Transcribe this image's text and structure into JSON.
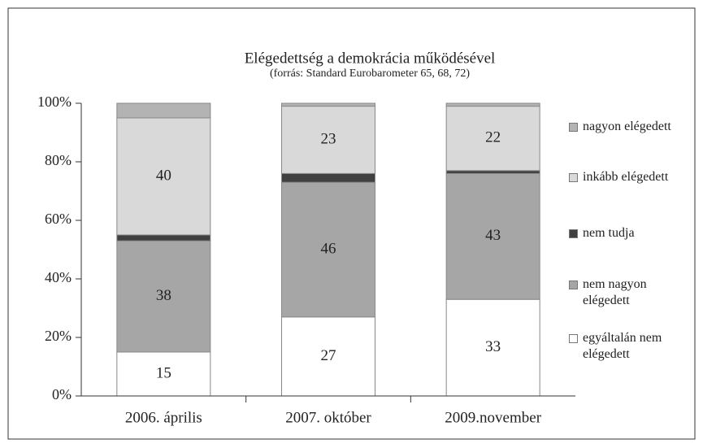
{
  "chart_data": {
    "type": "stacked_bar",
    "title": "Elégedettség a demokrácia működésével",
    "subtitle": "(forrás: Standard Eurobarometer 65, 68, 72)",
    "categories": [
      "2006. április",
      "2007. október",
      "2009.november"
    ],
    "series": [
      {
        "name": "egyáltalán nem elégedett",
        "color": "#ffffff",
        "values": [
          15,
          27,
          33
        ],
        "show_labels": true
      },
      {
        "name": "nem nagyon elégedett",
        "color": "#a6a6a6",
        "values": [
          38,
          46,
          43
        ],
        "show_labels": true
      },
      {
        "name": "nem tudja",
        "color": "#404040",
        "values": [
          2,
          3,
          1
        ],
        "show_labels": false
      },
      {
        "name": "inkább elégedett",
        "color": "#d9d9d9",
        "values": [
          40,
          23,
          22
        ],
        "show_labels": true
      },
      {
        "name": "nagyon elégedett",
        "color": "#b3b3b3",
        "values": [
          5,
          1,
          1
        ],
        "show_labels": false
      }
    ],
    "ylim": [
      0,
      100
    ],
    "yticks": [
      {
        "value": 0,
        "label": "0%"
      },
      {
        "value": 20,
        "label": "20%"
      },
      {
        "value": 40,
        "label": "40%"
      },
      {
        "value": 60,
        "label": "60%"
      },
      {
        "value": 80,
        "label": "80%"
      },
      {
        "value": 100,
        "label": "100%"
      }
    ],
    "legend": "right"
  }
}
